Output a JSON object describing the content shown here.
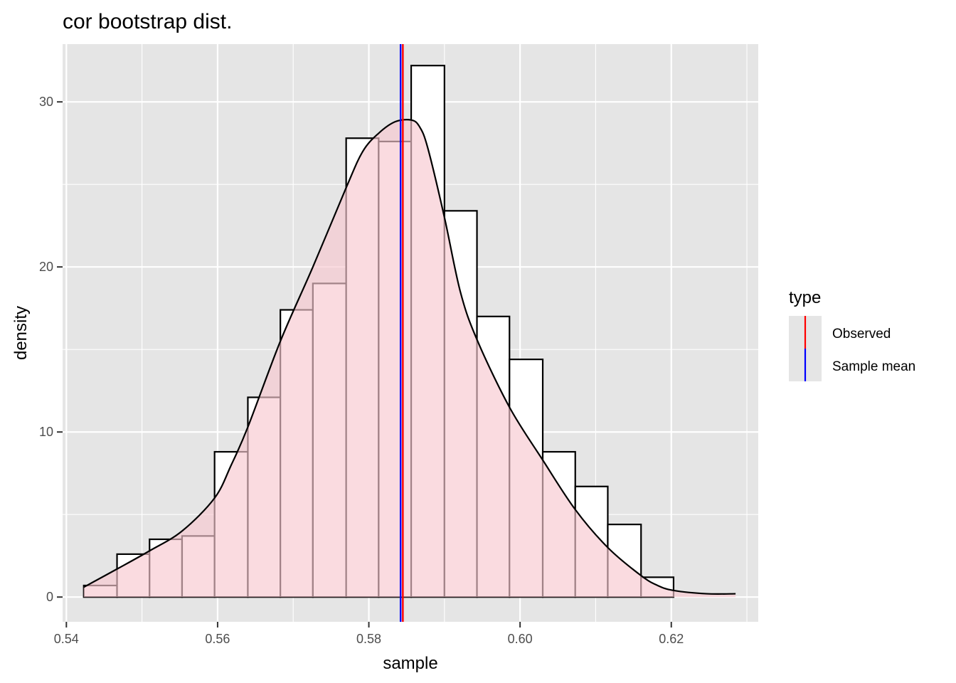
{
  "chart_data": {
    "type": "bar",
    "title": "cor bootstrap dist.",
    "xlabel": "sample",
    "ylabel": "density",
    "xlim": [
      0.5395,
      0.6315
    ],
    "ylim": [
      -1.5,
      33.5
    ],
    "x_ticks": [
      0.54,
      0.56,
      0.58,
      0.6,
      0.62
    ],
    "x_tick_labels": [
      "0.54",
      "0.56",
      "0.58",
      "0.60",
      "0.62"
    ],
    "y_ticks": [
      0,
      10,
      20,
      30
    ],
    "y_tick_labels": [
      "0",
      "10",
      "20",
      "30"
    ],
    "grid": true,
    "histogram": {
      "bin_edges": [
        0.5423,
        0.5467,
        0.551,
        0.5553,
        0.5596,
        0.564,
        0.5683,
        0.5726,
        0.577,
        0.5813,
        0.5856,
        0.59,
        0.5943,
        0.5986,
        0.603,
        0.6073,
        0.6116,
        0.616,
        0.6203,
        0.6247
      ],
      "density": [
        0.7,
        2.6,
        3.5,
        3.7,
        8.8,
        12.1,
        17.4,
        19.0,
        27.8,
        27.6,
        32.2,
        23.4,
        17.0,
        14.4,
        8.8,
        6.7,
        4.4,
        1.2,
        0.0
      ]
    },
    "density_curve": {
      "x": [
        0.5423,
        0.5467,
        0.551,
        0.5553,
        0.5596,
        0.5618,
        0.564,
        0.5683,
        0.5726,
        0.577,
        0.5792,
        0.5813,
        0.5835,
        0.5856,
        0.5867,
        0.5878,
        0.59,
        0.5921,
        0.5943,
        0.5986,
        0.603,
        0.6073,
        0.6116,
        0.616,
        0.6182,
        0.6203,
        0.6247,
        0.6285
      ],
      "y": [
        0.6,
        1.7,
        2.8,
        4.0,
        6.0,
        8.0,
        10.3,
        15.5,
        20.0,
        24.8,
        27.0,
        28.1,
        28.8,
        28.9,
        28.5,
        27.2,
        23.0,
        18.5,
        15.6,
        11.5,
        8.3,
        5.3,
        3.0,
        1.3,
        0.7,
        0.4,
        0.2,
        0.2
      ]
    },
    "vlines": [
      {
        "name": "Observed",
        "x": 0.5845,
        "color": "#ff0000"
      },
      {
        "name": "Sample mean",
        "x": 0.5842,
        "color": "#0000ff"
      }
    ],
    "legend": {
      "title": "type",
      "position": "right",
      "entries": [
        {
          "label": "Observed",
          "color": "#ff0000"
        },
        {
          "label": "Sample mean",
          "color": "#0000ff"
        }
      ]
    },
    "colors": {
      "panel_background": "#e5e5e5",
      "grid": "#ffffff",
      "bar_fill": "#ffffff",
      "bar_outline": "#000000",
      "density_fill": "#f8c8cf",
      "density_fill_opacity": "0.65",
      "density_line": "#000000"
    }
  }
}
